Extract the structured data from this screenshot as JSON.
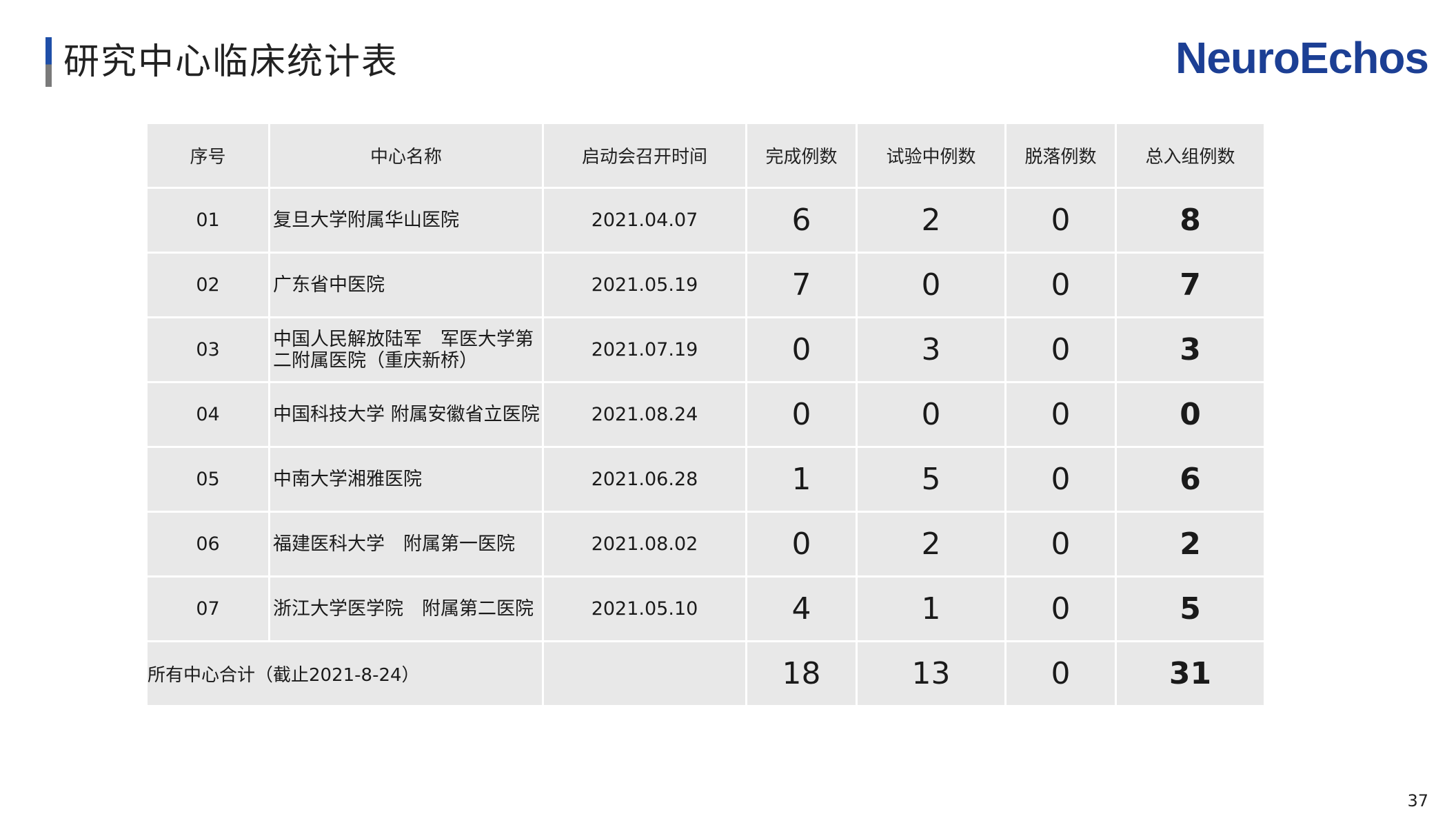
{
  "header": {
    "title": "研究中心临床统计表",
    "logo_text": "NeuroEchos",
    "logo_color": "#1c3f94"
  },
  "table": {
    "columns": [
      "序号",
      "中心名称",
      "启动会召开时间",
      "完成例数",
      "试验中例数",
      "脱落例数",
      "总入组例数"
    ],
    "rows": [
      {
        "no": "01",
        "name": "复旦大学附属华山医院",
        "date": "2021.04.07",
        "completed": "6",
        "ongoing": "2",
        "dropped": "0",
        "total": "8"
      },
      {
        "no": "02",
        "name": "广东省中医院",
        "date": "2021.05.19",
        "completed": "7",
        "ongoing": "0",
        "dropped": "0",
        "total": "7"
      },
      {
        "no": "03",
        "name": "中国人民解放陆军　军医大学第二附属医院（重庆新桥）",
        "date": "2021.07.19",
        "completed": "0",
        "ongoing": "3",
        "dropped": "0",
        "total": "3"
      },
      {
        "no": "04",
        "name": "中国科技大学 附属安徽省立医院",
        "date": "2021.08.24",
        "completed": "0",
        "ongoing": "0",
        "dropped": "0",
        "total": "0"
      },
      {
        "no": "05",
        "name": "中南大学湘雅医院",
        "date": "2021.06.28",
        "completed": "1",
        "ongoing": "5",
        "dropped": "0",
        "total": "6"
      },
      {
        "no": "06",
        "name": "福建医科大学　附属第一医院",
        "date": "2021.08.02",
        "completed": "0",
        "ongoing": "2",
        "dropped": "0",
        "total": "2"
      },
      {
        "no": "07",
        "name": "浙江大学医学院　附属第二医院",
        "date": "2021.05.10",
        "completed": "4",
        "ongoing": "1",
        "dropped": "0",
        "total": "5"
      }
    ],
    "summary": {
      "label": "所有中心合计（截止2021-8-24）",
      "date": "",
      "completed": "18",
      "ongoing": "13",
      "dropped": "0",
      "total": "31"
    }
  },
  "footer": {
    "page_number": "37"
  }
}
